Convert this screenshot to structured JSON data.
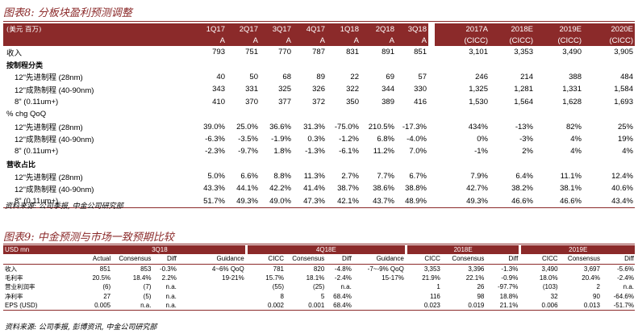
{
  "fig8": {
    "title": "图表8: 分板块盈利预测调整",
    "header": {
      "label": "(美元 百万)",
      "columns": [
        {
          "top": "1Q17",
          "bot": "A"
        },
        {
          "top": "2Q17",
          "bot": "A"
        },
        {
          "top": "3Q17",
          "bot": "A"
        },
        {
          "top": "4Q17",
          "bot": "A"
        },
        {
          "top": "1Q18",
          "bot": "A"
        },
        {
          "top": "2Q18",
          "bot": "A"
        },
        {
          "top": "3Q18",
          "bot": "A"
        },
        {
          "top": "2017A",
          "bot": "(CICC)"
        },
        {
          "top": "2018E",
          "bot": "(CICC)"
        },
        {
          "top": "2019E",
          "bot": "(CICC)"
        },
        {
          "top": "2020E",
          "bot": "(CICC)"
        }
      ]
    },
    "rows": [
      {
        "label": "收入",
        "kind": "plain",
        "values": [
          "793",
          "751",
          "770",
          "787",
          "831",
          "891",
          "851",
          "3,101",
          "3,353",
          "3,490",
          "3,905"
        ]
      },
      {
        "label": "按制程分类",
        "kind": "sec",
        "values": [
          "",
          "",
          "",
          "",
          "",
          "",
          "",
          "",
          "",
          "",
          ""
        ]
      },
      {
        "label": "12\"先进制程 (28nm)",
        "kind": "ind",
        "values": [
          "40",
          "50",
          "68",
          "89",
          "22",
          "69",
          "57",
          "246",
          "214",
          "388",
          "484"
        ]
      },
      {
        "label": "12\"成熟制程 (40-90nm)",
        "kind": "ind",
        "values": [
          "343",
          "331",
          "325",
          "326",
          "322",
          "344",
          "330",
          "1,325",
          "1,281",
          "1,331",
          "1,584"
        ]
      },
      {
        "label": "8\" (0.11um+)",
        "kind": "ind",
        "values": [
          "410",
          "370",
          "377",
          "372",
          "350",
          "389",
          "416",
          "1,530",
          "1,564",
          "1,628",
          "1,693"
        ]
      },
      {
        "label": "% chg QoQ",
        "kind": "plain",
        "values": [
          "",
          "",
          "",
          "",
          "",
          "",
          "",
          "",
          "",
          "",
          ""
        ]
      },
      {
        "label": "12\"先进制程 (28nm)",
        "kind": "ind",
        "values": [
          "39.0%",
          "25.0%",
          "36.6%",
          "31.3%",
          "-75.0%",
          "210.5%",
          "-17.3%",
          "434%",
          "-13%",
          "82%",
          "25%"
        ]
      },
      {
        "label": "12\"成熟制程 (40-90nm)",
        "kind": "ind",
        "values": [
          "-6.3%",
          "-3.5%",
          "-1.9%",
          "0.3%",
          "-1.2%",
          "6.8%",
          "-4.0%",
          "0%",
          "-3%",
          "4%",
          "19%"
        ]
      },
      {
        "label": "8\" (0.11um+)",
        "kind": "ind",
        "values": [
          "-2.3%",
          "-9.7%",
          "1.8%",
          "-1.3%",
          "-6.1%",
          "11.2%",
          "7.0%",
          "-1%",
          "2%",
          "4%",
          "4%"
        ]
      },
      {
        "label": "营收占比",
        "kind": "sec",
        "values": [
          "",
          "",
          "",
          "",
          "",
          "",
          "",
          "",
          "",
          "",
          ""
        ]
      },
      {
        "label": "12\"先进制程 (28nm)",
        "kind": "ind",
        "values": [
          "5.0%",
          "6.6%",
          "8.8%",
          "11.3%",
          "2.7%",
          "7.7%",
          "6.7%",
          "7.9%",
          "6.4%",
          "11.1%",
          "12.4%"
        ]
      },
      {
        "label": "12\"成熟制程 (40-90nm)",
        "kind": "ind",
        "values": [
          "43.3%",
          "44.1%",
          "42.2%",
          "41.4%",
          "38.7%",
          "38.6%",
          "38.8%",
          "42.7%",
          "38.2%",
          "38.1%",
          "40.6%"
        ]
      },
      {
        "label": "8\" (0.11um+)",
        "kind": "ind",
        "values": [
          "51.7%",
          "49.3%",
          "49.0%",
          "47.3%",
          "42.1%",
          "43.7%",
          "48.9%",
          "49.3%",
          "46.6%",
          "46.6%",
          "43.4%"
        ]
      }
    ],
    "source": "资料来源: 公司季报, 中金公司研究部"
  },
  "fig9": {
    "title": "图表9: 中金预测与市场一致预期比较",
    "unit": "USD mn",
    "groups": [
      "3Q18",
      "4Q18E",
      "2018E",
      "2019E"
    ],
    "subheaders": [
      "Actual",
      "Consensus",
      "Diff",
      "Guidance",
      "CICC",
      "Consensus",
      "Diff",
      "Guidance",
      "CICC",
      "Consensus",
      "Diff",
      "CICC",
      "Consensus",
      "Diff"
    ],
    "rows": [
      {
        "label": "收入",
        "values": [
          "851",
          "853",
          "-0.3%",
          "4~6% QoQ",
          "781",
          "820",
          "-4.8%",
          "-7~-9% QoQ",
          "3,353",
          "3,396",
          "-1.3%",
          "3,490",
          "3,697",
          "-5.6%"
        ]
      },
      {
        "label": "毛利率",
        "values": [
          "20.5%",
          "18.4%",
          "2.2%",
          "19-21%",
          "15.7%",
          "18.1%",
          "-2.4%",
          "15-17%",
          "21.9%",
          "22.1%",
          "-0.9%",
          "18.0%",
          "20.4%",
          "-2.4%"
        ]
      },
      {
        "label": "营业利润率",
        "values": [
          "(6)",
          "(7)",
          "n.a.",
          "",
          "(55)",
          "(25)",
          "n.a.",
          "",
          "1",
          "26",
          "-97.7%",
          "(103)",
          "2",
          "n.a."
        ]
      },
      {
        "label": "净利率",
        "values": [
          "27",
          "(5)",
          "n.a.",
          "",
          "8",
          "5",
          "68.4%",
          "",
          "116",
          "98",
          "18.8%",
          "32",
          "90",
          "-64.6%"
        ]
      },
      {
        "label": "EPS (USD)",
        "values": [
          "0.005",
          "n.a.",
          "n.a.",
          "",
          "0.002",
          "0.001",
          "68.4%",
          "",
          "0.023",
          "0.019",
          "21.1%",
          "0.006",
          "0.013",
          "-51.7%"
        ]
      }
    ],
    "source": "资料来源: 公司季报, 彭博资讯, 中金公司研究部"
  }
}
